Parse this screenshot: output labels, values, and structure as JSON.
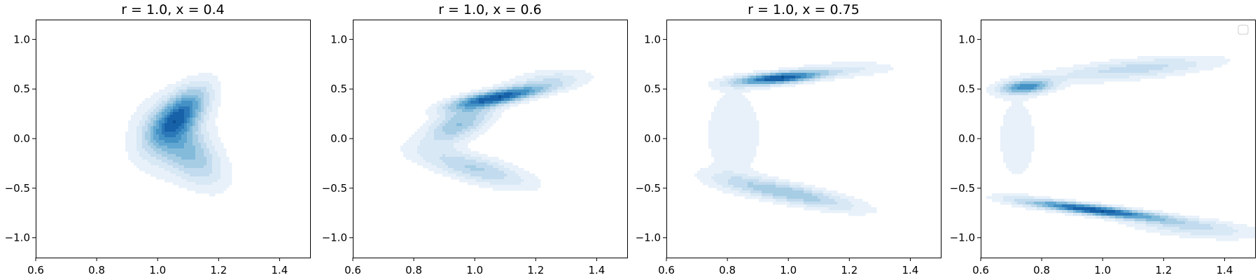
{
  "figure": {
    "colormap": [
      "#f7fbff",
      "#e8f1fa",
      "#d8e8f5",
      "#c3dbee",
      "#a6cde4",
      "#84bbdb",
      "#62a7d2",
      "#4391c5",
      "#2a78b8",
      "#1661a8",
      "#0b4f93"
    ],
    "axes_color": "#000000",
    "background": "#ffffff"
  },
  "chart_data": [
    {
      "type": "contour",
      "title": "r = 1.0, x = 0.4",
      "xlim": [
        0.6,
        1.5
      ],
      "ylim": [
        -1.2,
        1.2
      ],
      "xticks": [
        0.6,
        0.8,
        1.0,
        1.2,
        1.4
      ],
      "xtick_labels": [
        "0.6",
        "0.8",
        "1.0",
        "1.2",
        "1.4"
      ],
      "yticks": [
        -1.0,
        -0.5,
        0.0,
        0.5,
        1.0
      ],
      "ytick_labels": [
        "−1.0",
        "−0.5",
        "0.0",
        "0.5",
        "1.0"
      ],
      "legend": false,
      "density_components": [
        {
          "cx": 1.075,
          "cy": 0.25,
          "sx": 0.065,
          "sy": 0.2,
          "rho": 0.65,
          "w": 1.0
        },
        {
          "cx": 1.12,
          "cy": -0.2,
          "sx": 0.075,
          "sy": 0.22,
          "rho": -0.5,
          "w": 0.55
        },
        {
          "cx": 1.04,
          "cy": 0.05,
          "sx": 0.09,
          "sy": 0.28,
          "rho": 0.1,
          "w": 0.45
        }
      ]
    },
    {
      "type": "contour",
      "title": "r = 1.0, x = 0.6",
      "xlim": [
        0.6,
        1.5
      ],
      "ylim": [
        -1.2,
        1.2
      ],
      "xticks": [
        0.6,
        0.8,
        1.0,
        1.2,
        1.4
      ],
      "xtick_labels": [
        "0.6",
        "0.8",
        "1.0",
        "1.2",
        "1.4"
      ],
      "yticks": [
        -1.0,
        -0.5,
        0.0,
        0.5,
        1.0
      ],
      "ytick_labels": [
        "−1.0",
        "−0.5",
        "0.0",
        "0.5",
        "1.0"
      ],
      "legend": false,
      "density_components": [
        {
          "cx": 1.08,
          "cy": 0.42,
          "sx": 0.11,
          "sy": 0.08,
          "rho": 0.75,
          "w": 1.0
        },
        {
          "cx": 0.95,
          "cy": 0.15,
          "sx": 0.08,
          "sy": 0.15,
          "rho": 0.6,
          "w": 0.55
        },
        {
          "cx": 1.0,
          "cy": -0.3,
          "sx": 0.13,
          "sy": 0.14,
          "rho": -0.7,
          "w": 0.45
        },
        {
          "cx": 1.25,
          "cy": 0.6,
          "sx": 0.1,
          "sy": 0.08,
          "rho": 0.3,
          "w": 0.25
        }
      ]
    },
    {
      "type": "contour",
      "title": "r = 1.0, x = 0.75",
      "xlim": [
        0.6,
        1.5
      ],
      "ylim": [
        -1.2,
        1.2
      ],
      "xticks": [
        0.6,
        0.8,
        1.0,
        1.2,
        1.4
      ],
      "xtick_labels": [
        "0.6",
        "0.8",
        "1.0",
        "1.2",
        "1.4"
      ],
      "yticks": [
        -1.0,
        -0.5,
        0.0,
        0.5,
        1.0
      ],
      "ytick_labels": [
        "−1.0",
        "−0.5",
        "0.0",
        "0.5",
        "1.0"
      ],
      "legend": false,
      "density_components": [
        {
          "cx": 0.97,
          "cy": 0.61,
          "sx": 0.1,
          "sy": 0.05,
          "rho": 0.55,
          "w": 1.0
        },
        {
          "cx": 1.0,
          "cy": -0.55,
          "sx": 0.16,
          "sy": 0.12,
          "rho": -0.8,
          "w": 0.5
        },
        {
          "cx": 0.82,
          "cy": 0.05,
          "sx": 0.07,
          "sy": 0.35,
          "rho": 0.0,
          "w": 0.2
        },
        {
          "cx": 1.2,
          "cy": 0.7,
          "sx": 0.12,
          "sy": 0.06,
          "rho": 0.2,
          "w": 0.2
        }
      ]
    },
    {
      "type": "contour",
      "title": "",
      "xlim": [
        0.6,
        1.5
      ],
      "ylim": [
        -1.2,
        1.2
      ],
      "xticks": [
        0.6,
        0.8,
        1.0,
        1.2,
        1.4
      ],
      "xtick_labels": [
        "0.6",
        "0.8",
        "1.0",
        "1.2",
        "1.4"
      ],
      "yticks": [
        -1.0,
        -0.5,
        0.0,
        0.5,
        1.0
      ],
      "ytick_labels": [
        "−1.0",
        "−0.5",
        "0.0",
        "0.5",
        "1.0"
      ],
      "legend": true,
      "legend_placement": "top-right",
      "density_components": [
        {
          "cx": 0.97,
          "cy": -0.72,
          "sx": 0.16,
          "sy": 0.07,
          "rho": -0.85,
          "w": 1.0
        },
        {
          "cx": 0.75,
          "cy": 0.52,
          "sx": 0.06,
          "sy": 0.05,
          "rho": 0.3,
          "w": 0.7
        },
        {
          "cx": 1.1,
          "cy": 0.7,
          "sx": 0.2,
          "sy": 0.09,
          "rho": 0.6,
          "w": 0.35
        },
        {
          "cx": 0.72,
          "cy": 0.0,
          "sx": 0.06,
          "sy": 0.4,
          "rho": 0.0,
          "w": 0.15
        },
        {
          "cx": 1.3,
          "cy": -0.9,
          "sx": 0.15,
          "sy": 0.08,
          "rho": -0.5,
          "w": 0.3
        }
      ]
    }
  ]
}
